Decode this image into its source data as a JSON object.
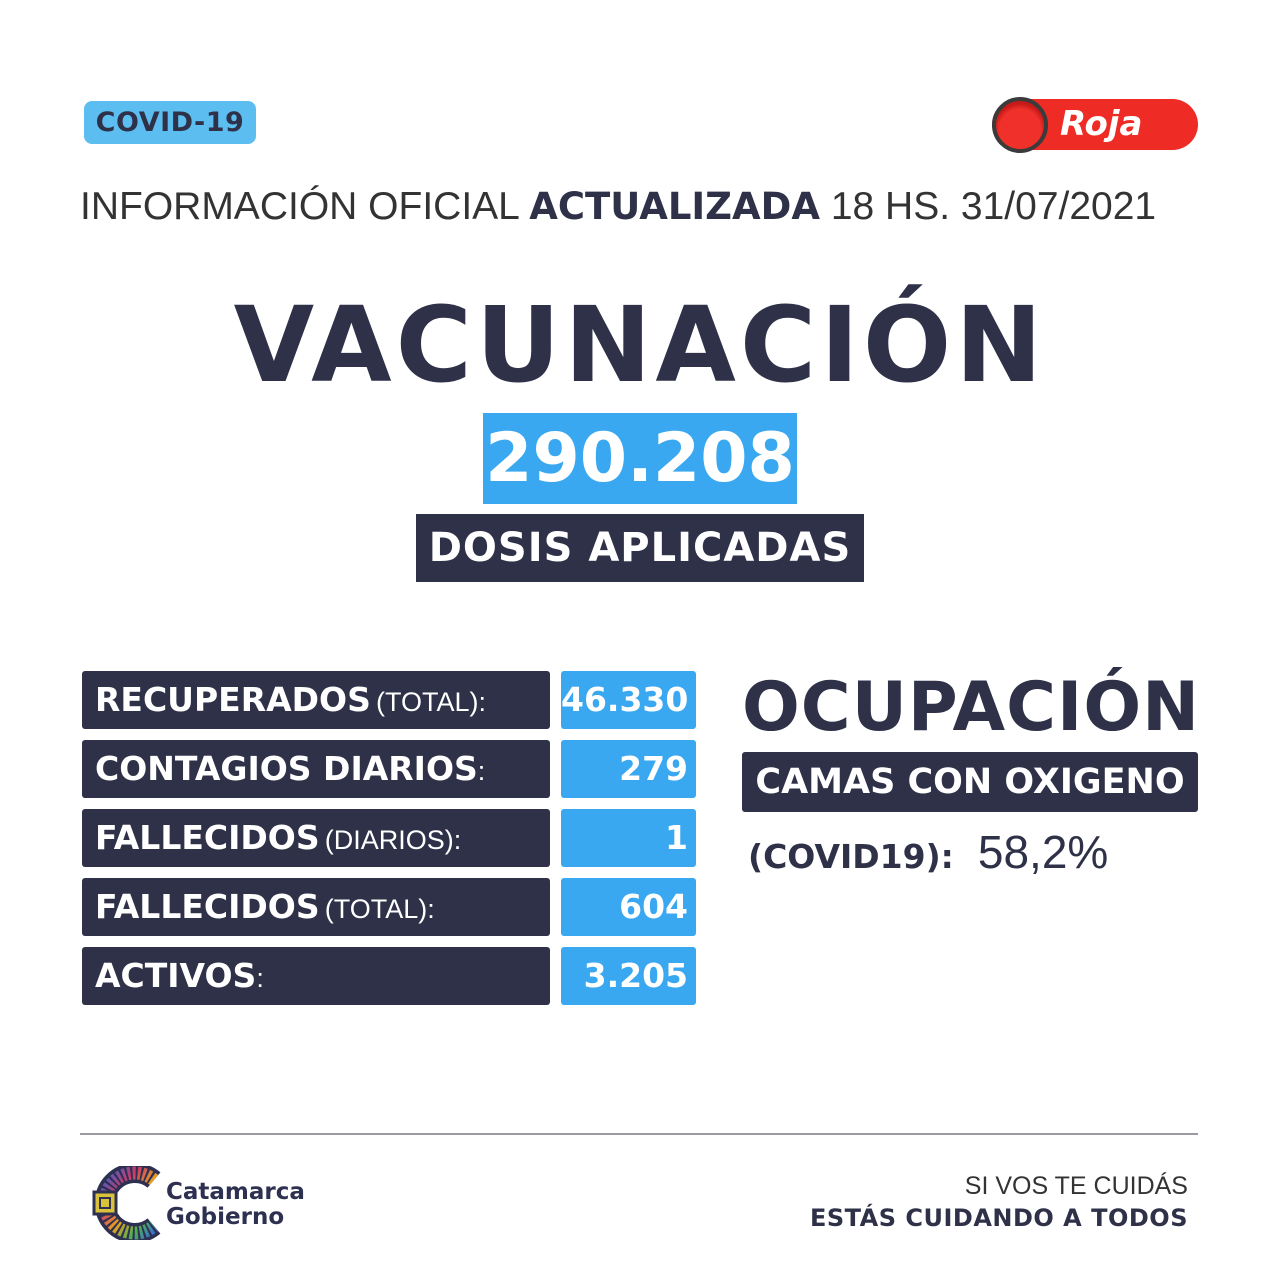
{
  "header": {
    "badge": "COVID-19",
    "alert_level": "Roja",
    "alert_color": "#ee2b24",
    "info_prefix": "INFORMACIÓN OFICIAL",
    "info_bold": "ACTUALIZADA",
    "info_suffix": "18 HS. 31/07/2021"
  },
  "vacunacion": {
    "title": "VACUNACIÓN",
    "value": "290.208",
    "label": "DOSIS APLICADAS"
  },
  "stats": [
    {
      "label": "RECUPERADOS",
      "qualifier": "(TOTAL):",
      "value": "46.330"
    },
    {
      "label": "CONTAGIOS DIARIOS",
      "qualifier": ":",
      "value": "279"
    },
    {
      "label": "FALLECIDOS",
      "qualifier": "(DIARIOS):",
      "value": "1"
    },
    {
      "label": "FALLECIDOS",
      "qualifier": "(TOTAL):",
      "value": "604"
    },
    {
      "label": "ACTIVOS",
      "qualifier": ":",
      "value": "3.205"
    }
  ],
  "ocupacion": {
    "title": "OCUPACIÓN",
    "subtitle": "CAMAS CON OXIGENO",
    "label": "(COVID19):",
    "value": "58,2%"
  },
  "footer": {
    "logo_line1": "Catamarca",
    "logo_line2": "Gobierno",
    "tagline1": "SI VOS TE CUIDÁS",
    "tagline2": "ESTÁS CUIDANDO A TODOS"
  },
  "colors": {
    "navy": "#2e3148",
    "blue": "#3aa8f0",
    "light_blue": "#5cbdf0"
  }
}
